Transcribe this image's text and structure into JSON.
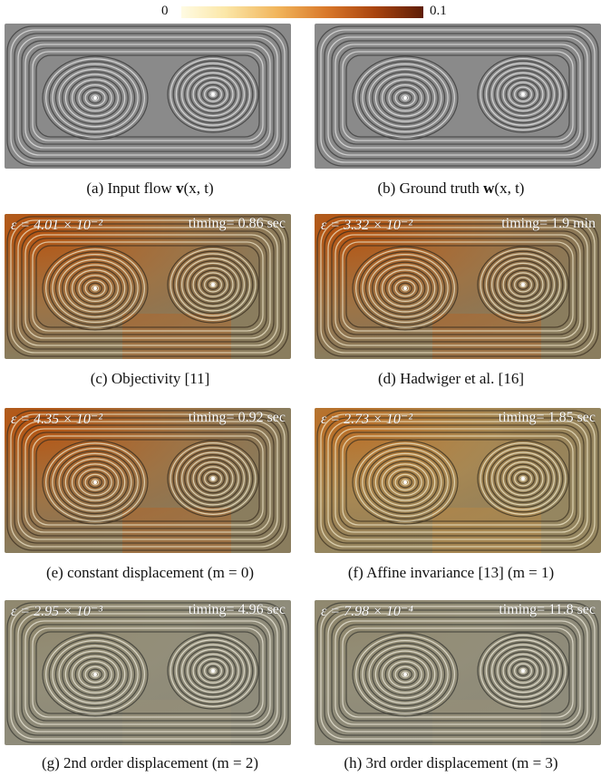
{
  "colorbar": {
    "min": "0",
    "max": "0.1"
  },
  "panels": [
    {
      "id": "a",
      "caption": {
        "prefix": "(a) Input flow ",
        "symbol": "v",
        "args": "(x, t)"
      },
      "epsilon": "",
      "timing": "",
      "style": "gray"
    },
    {
      "id": "b",
      "caption": {
        "prefix": "(b) Ground truth ",
        "symbol": "w",
        "args": "(x, t)"
      },
      "epsilon": "",
      "timing": "",
      "style": "gray"
    },
    {
      "id": "c",
      "caption": {
        "prefix": "(c) Objectivity [11]",
        "symbol": "",
        "args": ""
      },
      "epsilon": "ε = 4.01 × 10⁻²",
      "timing": "timing= 0.86 sec",
      "style": "heat-strong"
    },
    {
      "id": "d",
      "caption": {
        "prefix": "(d) Hadwiger et al. [16]",
        "symbol": "",
        "args": ""
      },
      "epsilon": "ε = 3.32 × 10⁻²",
      "timing": "timing= 1.9 min",
      "style": "heat-strong"
    },
    {
      "id": "e",
      "caption": {
        "prefix": "(e) constant displacement (m = 0)",
        "symbol": "",
        "args": ""
      },
      "epsilon": "ε = 4.35 × 10⁻²",
      "timing": "timing= 0.92 sec",
      "style": "heat-strong"
    },
    {
      "id": "f",
      "caption": {
        "prefix": "(f) Affine invariance [13] (m = 1)",
        "symbol": "",
        "args": ""
      },
      "epsilon": "ε = 2.73 × 10⁻²",
      "timing": "timing= 1.85 sec",
      "style": "heat-mid"
    },
    {
      "id": "g",
      "caption": {
        "prefix": "(g) 2nd order displacement (m = 2)",
        "symbol": "",
        "args": ""
      },
      "epsilon": "ε = 2.95 × 10⁻³",
      "timing": "timing= 4.96 sec",
      "style": "heat-low"
    },
    {
      "id": "h",
      "caption": {
        "prefix": "(h) 3rd order displacement (m = 3)",
        "symbol": "",
        "args": ""
      },
      "epsilon": "ε = 7.98 × 10⁻⁴",
      "timing": "timing= 11.8 sec",
      "style": "heat-low"
    }
  ]
}
